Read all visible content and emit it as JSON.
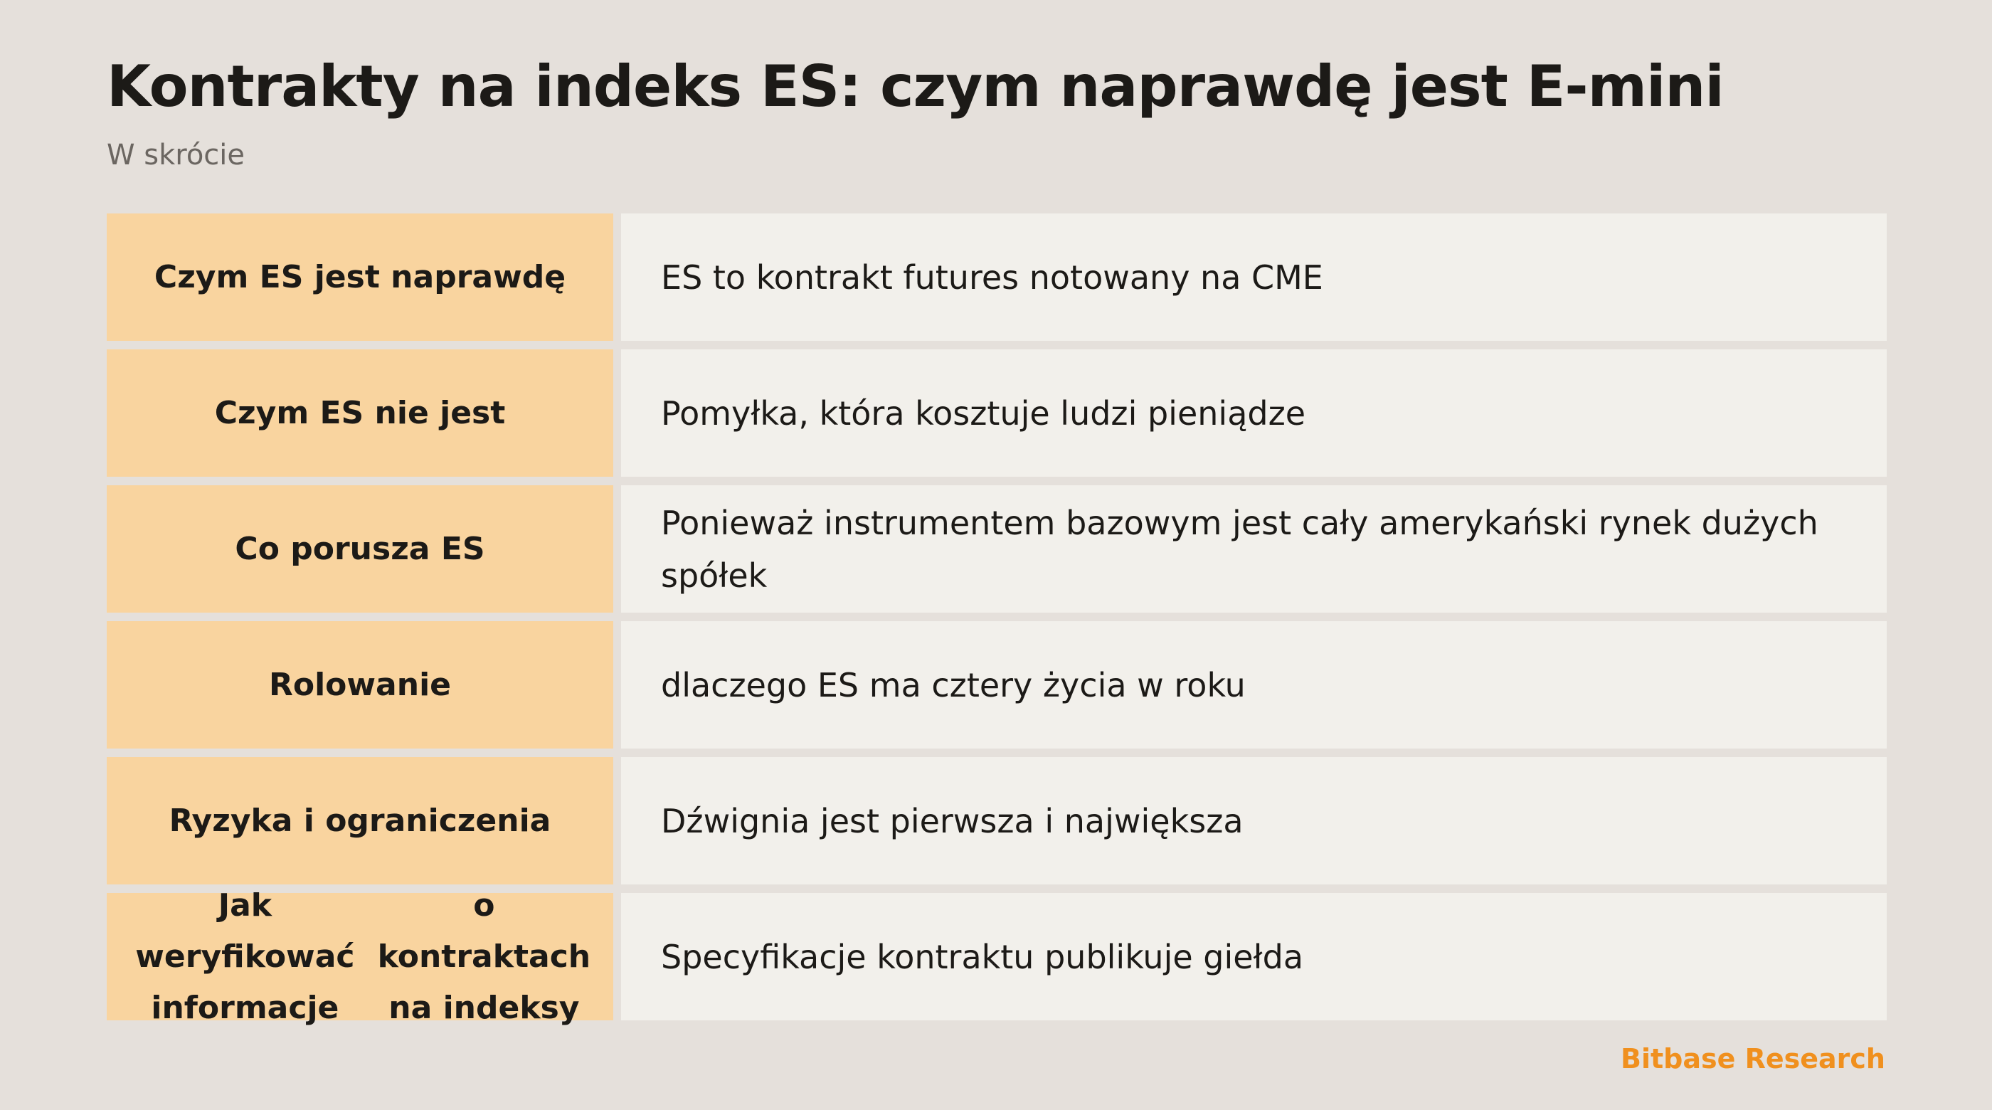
{
  "header": {
    "title": "Kontrakty na indeks ES: czym naprawdę jest E-mini",
    "subtitle": "W skrócie"
  },
  "rows": [
    {
      "label": "Czym ES jest naprawdę",
      "value": "ES to kontrakt futures notowany na CME"
    },
    {
      "label": "Czym ES nie jest",
      "value": "Pomyłka, która kosztuje ludzi pieniądze"
    },
    {
      "label": "Co porusza ES",
      "value": "Ponieważ instrumentem bazowym jest cały amerykański rynek dużych spółek"
    },
    {
      "label": "Rolowanie",
      "value": "dlaczego ES ma cztery życia w roku"
    },
    {
      "label": "Ryzyka i ograniczenia",
      "value": "Dźwignia jest pierwsza i największa"
    },
    {
      "label_lines": [
        "Jak weryfikować informacje",
        "o kontraktach na indeksy"
      ],
      "value": "Specyfikacje kontraktu publikuje giełda"
    }
  ],
  "footer": {
    "brand": "Bitbase Research"
  },
  "colors": {
    "background": "#e5e0db",
    "label_cell": "#f9d49f",
    "value_cell": "#f2f0eb",
    "brand_accent": "#f0901e"
  }
}
